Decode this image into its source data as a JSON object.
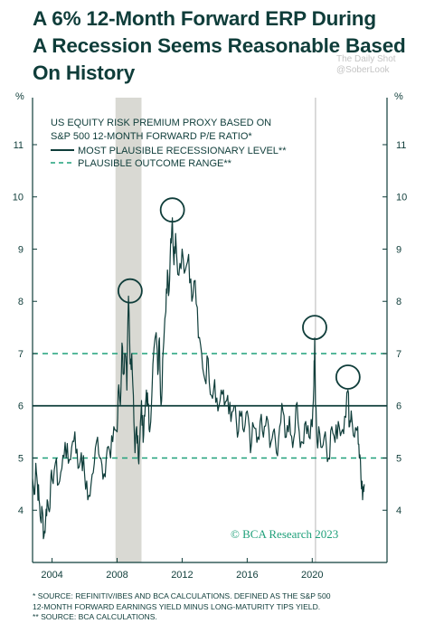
{
  "title": {
    "line1": "A 6% 12-Month Forward ERP During",
    "line2": "A Recession Seems Reasonable Based",
    "line3": "On History"
  },
  "watermark": {
    "line1": "The Daily Shot",
    "line2": "@SoberLook"
  },
  "credit": "© BCA Research 2023",
  "footnotes": {
    "line1": "* SOURCE: REFINITIV/IBES AND BCA CALCULATIONS. DEFINED AS THE S&P 500",
    "line2": "12-MONTH FORWARD EARNINGS YIELD MINUS LONG-MATURITY TIPS YIELD.",
    "line3": "** SOURCE: BCA CALCULATIONS."
  },
  "colors": {
    "text": "#0f3d3a",
    "series": "#0f3d3a",
    "dashed": "#1fa07a",
    "recession_band": "#d9d9d3",
    "covid_line": "#cfcfcf",
    "background": "#ffffff"
  },
  "chart_data": {
    "type": "line",
    "title": "US EQUITY RISK PREMIUM PROXY BASED ON S&P 500 12-MONTH FORWARD P/E RATIO*",
    "title_lines": [
      "US EQUITY RISK PREMIUM PROXY BASED ON",
      "S&P 500 12-MONTH FORWARD P/E RATIO*"
    ],
    "y_unit_label": "%",
    "xlim": [
      2002.8,
      2024.6
    ],
    "ylim": [
      3.0,
      11.9
    ],
    "x_ticks": [
      2004,
      2008,
      2012,
      2016,
      2020
    ],
    "y_ticks": [
      4,
      5,
      6,
      7,
      8,
      9,
      10,
      11
    ],
    "grid": false,
    "legend": [
      {
        "label": "MOST PLAUSIBLE RECESSIONARY LEVEL**",
        "style": "solid"
      },
      {
        "label": "PLAUSIBLE OUTCOME RANGE**",
        "style": "dashed"
      }
    ],
    "reference_lines": {
      "solid": 6.0,
      "dashed": [
        5.0,
        7.0
      ]
    },
    "shaded_periods": [
      [
        2007.9,
        2009.5
      ]
    ],
    "vertical_markers": [
      2020.2
    ],
    "circled_peaks": [
      {
        "x": 2008.8,
        "y": 8.2
      },
      {
        "x": 2011.4,
        "y": 9.75
      },
      {
        "x": 2020.15,
        "y": 7.5
      },
      {
        "x": 2022.2,
        "y": 6.55
      }
    ],
    "series": [
      {
        "values_x": [
          2002.8,
          2002.9,
          2003.0,
          2003.1,
          2003.2,
          2003.3,
          2003.4,
          2003.5,
          2003.6,
          2003.7,
          2003.8,
          2003.9,
          2004.0,
          2004.2,
          2004.4,
          2004.6,
          2004.8,
          2005.0,
          2005.2,
          2005.4,
          2005.6,
          2005.8,
          2006.0,
          2006.2,
          2006.4,
          2006.6,
          2006.8,
          2007.0,
          2007.2,
          2007.4,
          2007.6,
          2007.8,
          2008.0,
          2008.1,
          2008.2,
          2008.3,
          2008.4,
          2008.5,
          2008.6,
          2008.7,
          2008.8,
          2008.9,
          2009.0,
          2009.1,
          2009.2,
          2009.3,
          2009.4,
          2009.5,
          2009.6,
          2009.7,
          2009.8,
          2009.9,
          2010.0,
          2010.2,
          2010.4,
          2010.5,
          2010.6,
          2010.7,
          2010.8,
          2011.0,
          2011.1,
          2011.2,
          2011.3,
          2011.4,
          2011.5,
          2011.6,
          2011.8,
          2012.0,
          2012.2,
          2012.4,
          2012.6,
          2012.8,
          2013.0,
          2013.2,
          2013.4,
          2013.6,
          2013.8,
          2014.0,
          2014.2,
          2014.4,
          2014.6,
          2014.8,
          2015.0,
          2015.2,
          2015.4,
          2015.6,
          2015.8,
          2016.0,
          2016.2,
          2016.4,
          2016.6,
          2016.8,
          2017.0,
          2017.2,
          2017.4,
          2017.6,
          2017.8,
          2018.0,
          2018.2,
          2018.4,
          2018.6,
          2018.8,
          2019.0,
          2019.2,
          2019.4,
          2019.6,
          2019.8,
          2020.0,
          2020.1,
          2020.15,
          2020.2,
          2020.3,
          2020.4,
          2020.6,
          2020.8,
          2021.0,
          2021.2,
          2021.4,
          2021.6,
          2021.8,
          2022.0,
          2022.2,
          2022.3,
          2022.4,
          2022.6,
          2022.8,
          2022.9,
          2023.0,
          2023.1,
          2023.2
        ],
        "values_y": [
          4.6,
          4.3,
          4.9,
          4.5,
          4.2,
          3.8,
          4.0,
          3.5,
          3.8,
          4.2,
          4.0,
          4.4,
          4.6,
          4.9,
          4.5,
          4.8,
          5.3,
          4.9,
          5.2,
          5.5,
          4.8,
          5.1,
          4.7,
          4.2,
          4.5,
          4.9,
          5.4,
          5.0,
          4.7,
          5.2,
          5.0,
          5.6,
          5.5,
          6.4,
          6.0,
          7.2,
          6.6,
          7.0,
          6.3,
          8.1,
          6.8,
          7.0,
          6.2,
          5.1,
          5.6,
          5.0,
          5.4,
          6.1,
          5.3,
          5.8,
          6.3,
          6.0,
          5.5,
          6.8,
          7.4,
          6.6,
          7.3,
          6.0,
          6.9,
          7.8,
          8.6,
          8.2,
          9.2,
          9.6,
          8.7,
          9.3,
          8.5,
          9.0,
          8.6,
          8.9,
          8.0,
          8.4,
          7.3,
          7.0,
          6.5,
          6.9,
          6.2,
          6.5,
          5.9,
          6.3,
          6.0,
          6.2,
          5.7,
          6.0,
          5.4,
          5.8,
          5.5,
          5.9,
          5.1,
          5.6,
          5.3,
          5.7,
          5.4,
          5.8,
          5.2,
          5.5,
          5.1,
          5.6,
          5.9,
          5.4,
          5.8,
          5.2,
          6.0,
          5.5,
          5.3,
          5.7,
          5.4,
          5.6,
          6.4,
          7.3,
          6.0,
          5.3,
          5.6,
          5.2,
          5.5,
          5.0,
          5.6,
          5.3,
          5.7,
          5.5,
          5.8,
          6.3,
          5.6,
          5.9,
          5.4,
          5.6,
          5.0,
          4.6,
          4.2,
          4.5
        ]
      }
    ]
  }
}
